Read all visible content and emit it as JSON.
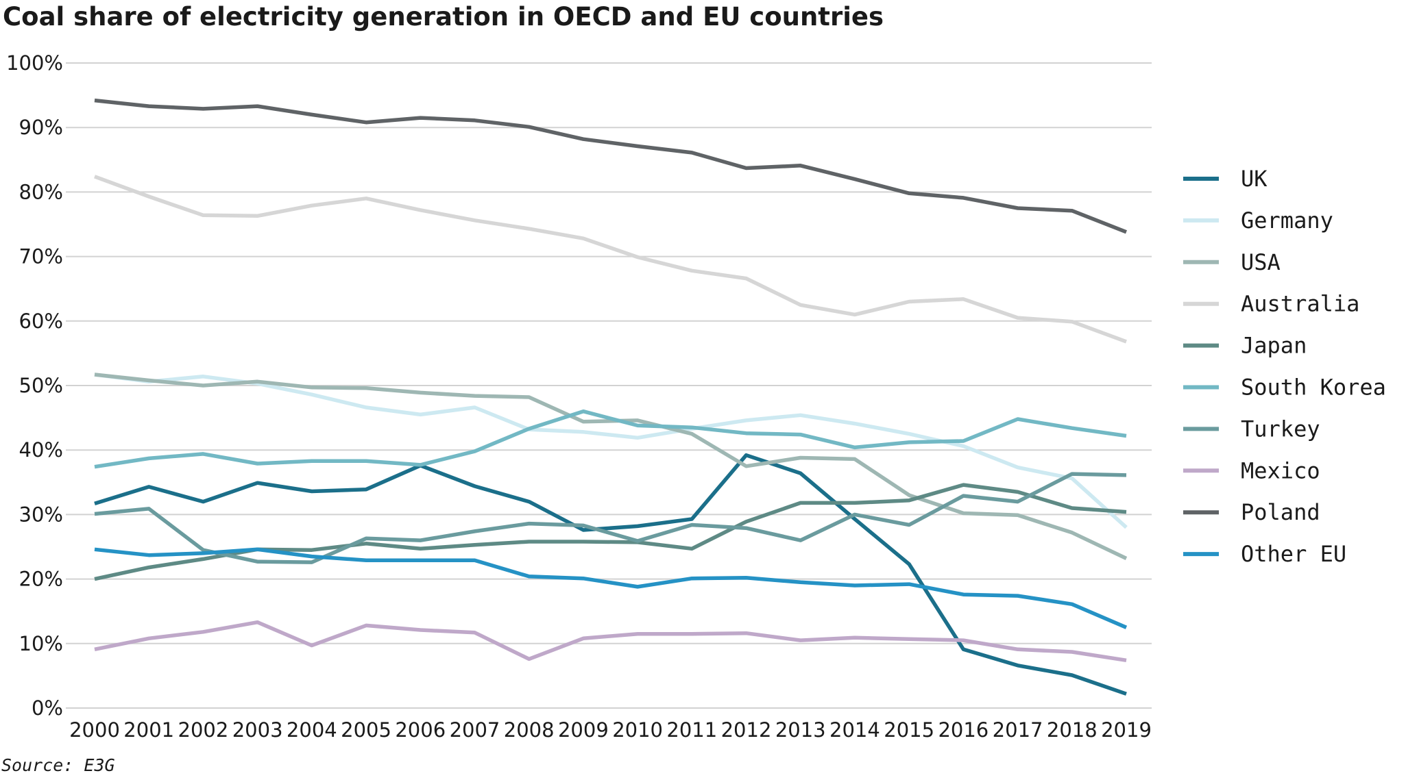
{
  "chart_data": {
    "type": "line",
    "title": "Coal share of electricity generation in OECD and EU countries",
    "source": "Source: E3G",
    "xlabel": "",
    "ylabel": "",
    "ylim": [
      0,
      100
    ],
    "y_ticks": [
      "0%",
      "10%",
      "20%",
      "30%",
      "40%",
      "50%",
      "60%",
      "70%",
      "80%",
      "90%",
      "100%"
    ],
    "y_tick_values": [
      0,
      10,
      20,
      30,
      40,
      50,
      60,
      70,
      80,
      90,
      100
    ],
    "grid": true,
    "legend_position": "right",
    "x": [
      "2000",
      "2001",
      "2002",
      "2003",
      "2004",
      "2005",
      "2006",
      "2007",
      "2008",
      "2009",
      "2010",
      "2011",
      "2012",
      "2013",
      "2014",
      "2015",
      "2016",
      "2017",
      "2018",
      "2019"
    ],
    "series": [
      {
        "name": "UK",
        "color": "#1b6f8a",
        "values": [
          31.7,
          34.3,
          32.0,
          34.9,
          33.6,
          33.9,
          37.6,
          34.4,
          32.0,
          27.6,
          28.2,
          29.3,
          39.2,
          36.4,
          29.3,
          22.3,
          9.1,
          6.6,
          5.1,
          2.2
        ]
      },
      {
        "name": "Germany",
        "color": "#cde9f1",
        "values": [
          51.7,
          50.6,
          51.4,
          50.3,
          48.6,
          46.6,
          45.5,
          46.6,
          43.2,
          42.8,
          41.9,
          43.3,
          44.6,
          45.4,
          44.1,
          42.5,
          40.6,
          37.3,
          35.6,
          28.0
        ]
      },
      {
        "name": "USA",
        "color": "#9eb7b3",
        "values": [
          51.7,
          50.8,
          50.0,
          50.6,
          49.7,
          49.6,
          48.9,
          48.4,
          48.2,
          44.4,
          44.6,
          42.5,
          37.5,
          38.8,
          38.6,
          33.0,
          30.2,
          29.9,
          27.2,
          23.2
        ]
      },
      {
        "name": "Australia",
        "color": "#d6d6d6",
        "values": [
          82.4,
          79.3,
          76.4,
          76.3,
          77.9,
          79.0,
          77.2,
          75.6,
          74.3,
          72.8,
          69.9,
          67.8,
          66.6,
          62.5,
          61.0,
          63.0,
          63.4,
          60.5,
          59.9,
          56.8
        ]
      },
      {
        "name": "Japan",
        "color": "#5e8a85",
        "values": [
          20.0,
          21.8,
          23.1,
          24.6,
          24.5,
          25.5,
          24.7,
          25.3,
          25.8,
          25.8,
          25.7,
          24.7,
          28.9,
          31.8,
          31.8,
          32.2,
          34.6,
          33.5,
          31.0,
          30.4
        ]
      },
      {
        "name": "South Korea",
        "color": "#72b8c4",
        "values": [
          37.4,
          38.7,
          39.4,
          37.9,
          38.3,
          38.3,
          37.7,
          39.8,
          43.3,
          46.0,
          43.8,
          43.5,
          42.6,
          42.4,
          40.4,
          41.2,
          41.4,
          44.8,
          43.4,
          42.2
        ]
      },
      {
        "name": "Turkey",
        "color": "#6a9b9e",
        "values": [
          30.1,
          30.9,
          24.5,
          22.7,
          22.6,
          26.3,
          26.0,
          27.4,
          28.6,
          28.3,
          25.9,
          28.4,
          27.9,
          26.0,
          30.0,
          28.4,
          32.9,
          32.0,
          36.3,
          36.1
        ]
      },
      {
        "name": "Mexico",
        "color": "#bfa8c9",
        "values": [
          9.1,
          10.8,
          11.8,
          13.3,
          9.7,
          12.8,
          12.1,
          11.7,
          7.6,
          10.8,
          11.5,
          11.5,
          11.6,
          10.5,
          10.9,
          10.7,
          10.5,
          9.1,
          8.7,
          7.4
        ]
      },
      {
        "name": "Poland",
        "color": "#5f6366",
        "values": [
          94.2,
          93.3,
          92.9,
          93.3,
          92.0,
          90.8,
          91.5,
          91.1,
          90.1,
          88.2,
          87.1,
          86.1,
          83.7,
          84.1,
          82.0,
          79.8,
          79.1,
          77.5,
          77.1,
          73.8
        ]
      },
      {
        "name": "Other EU",
        "color": "#2592c5",
        "values": [
          24.6,
          23.7,
          24.0,
          24.6,
          23.5,
          22.9,
          22.9,
          22.9,
          20.4,
          20.1,
          18.8,
          20.1,
          20.2,
          19.5,
          19.0,
          19.2,
          17.6,
          17.4,
          16.1,
          12.5
        ]
      }
    ]
  }
}
